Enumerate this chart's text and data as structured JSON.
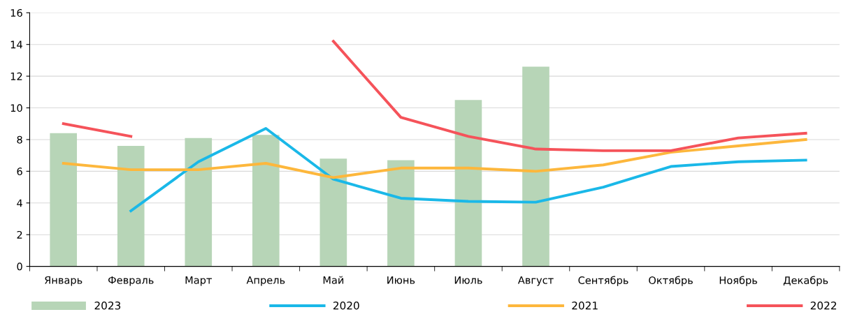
{
  "chart_data": {
    "type": "bar",
    "categories": [
      "Январь",
      "Февраль",
      "Март",
      "Апрель",
      "Май",
      "Июнь",
      "Июль",
      "Август",
      "Сентябрь",
      "Октябрь",
      "Ноябрь",
      "Декабрь"
    ],
    "series": [
      {
        "name": "2023",
        "color": "#b7d5b7",
        "values": [
          8.4,
          7.6,
          8.1,
          8.3,
          6.8,
          6.7,
          10.5,
          12.6,
          null,
          null,
          null,
          null
        ]
      },
      {
        "name": "2020",
        "type": "line",
        "color": "#1ab8e8",
        "values": [
          null,
          3.5,
          6.6,
          8.7,
          5.5,
          4.3,
          4.1,
          4.05,
          5.0,
          6.3,
          6.6,
          6.7
        ]
      },
      {
        "name": "2021",
        "type": "line",
        "color": "#fdb73c",
        "values": [
          6.5,
          6.1,
          6.1,
          6.5,
          5.6,
          6.2,
          6.2,
          6.0,
          6.4,
          7.2,
          7.6,
          8.0
        ]
      },
      {
        "name": "2022",
        "type": "line",
        "color": "#f5535a",
        "values": [
          9.0,
          8.2,
          null,
          null,
          14.2,
          9.4,
          8.2,
          7.4,
          7.3,
          7.3,
          8.1,
          8.4
        ]
      }
    ],
    "ylim": [
      0,
      16
    ],
    "yticks": [
      0,
      2,
      4,
      6,
      8,
      10,
      12,
      14,
      16
    ],
    "grid": "y",
    "legend": "bottom",
    "marker": "none",
    "line_style": "solid"
  }
}
